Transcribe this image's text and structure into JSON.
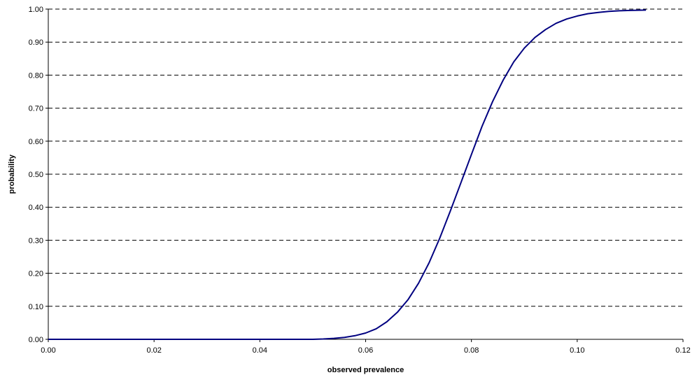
{
  "chart_data": {
    "type": "line",
    "title": "",
    "xlabel": "observed prevalence",
    "ylabel": "probability",
    "xlim": [
      0.0,
      0.12
    ],
    "ylim": [
      0.0,
      1.0
    ],
    "x_ticks": [
      "0.00",
      "0.02",
      "0.04",
      "0.06",
      "0.08",
      "0.10",
      "0.12"
    ],
    "y_ticks": [
      "0.00",
      "0.10",
      "0.20",
      "0.30",
      "0.40",
      "0.50",
      "0.60",
      "0.70",
      "0.80",
      "0.90",
      "1.00"
    ],
    "grid": "horizontal dashed",
    "line_color": "#000080",
    "series": [
      {
        "x": [
          0.0,
          0.01,
          0.02,
          0.03,
          0.04,
          0.05,
          0.052,
          0.054,
          0.056,
          0.058,
          0.06,
          0.062,
          0.064,
          0.066,
          0.068,
          0.07,
          0.072,
          0.074,
          0.076,
          0.078,
          0.08,
          0.082,
          0.084,
          0.086,
          0.088,
          0.09,
          0.092,
          0.094,
          0.096,
          0.098,
          0.1,
          0.102,
          0.104,
          0.106,
          0.108,
          0.11,
          0.113
        ],
        "y": [
          0.0,
          0.0,
          0.0,
          0.0,
          0.0,
          0.0,
          0.001,
          0.003,
          0.006,
          0.011,
          0.019,
          0.032,
          0.053,
          0.082,
          0.12,
          0.17,
          0.232,
          0.306,
          0.388,
          0.474,
          0.56,
          0.645,
          0.72,
          0.785,
          0.84,
          0.882,
          0.914,
          0.938,
          0.957,
          0.97,
          0.979,
          0.986,
          0.99,
          0.993,
          0.995,
          0.996,
          0.997
        ]
      }
    ]
  }
}
